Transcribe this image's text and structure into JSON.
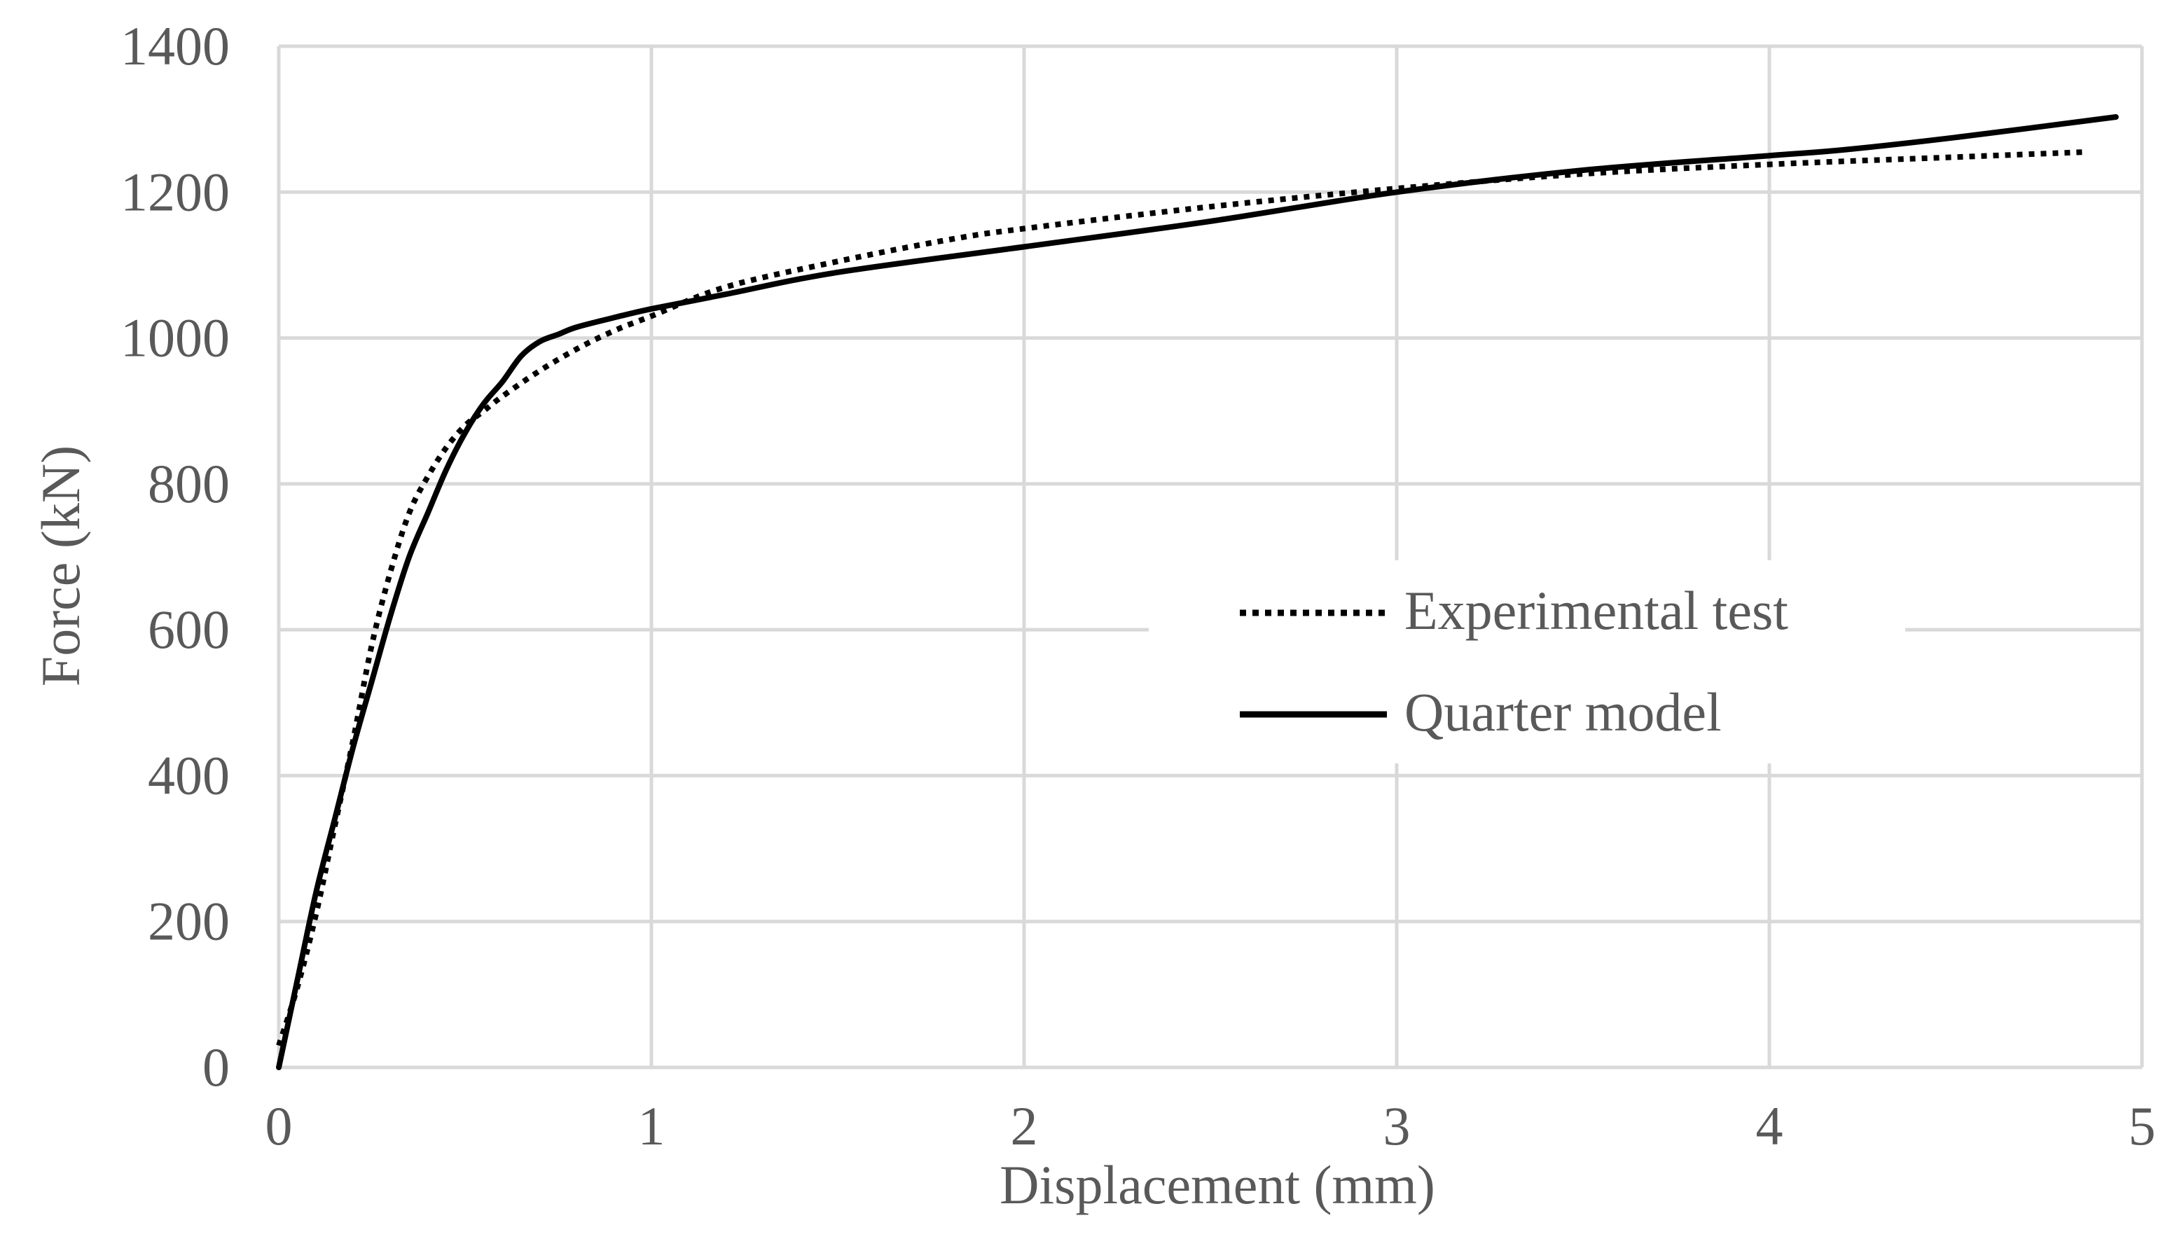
{
  "chart_data": {
    "type": "line",
    "title": "",
    "xlabel": "Displacement (mm)",
    "ylabel": "Force (kN)",
    "xlim": [
      0,
      5
    ],
    "ylim": [
      0,
      1400
    ],
    "xticks": [
      0,
      1,
      2,
      3,
      4,
      5
    ],
    "yticks": [
      0,
      200,
      400,
      600,
      800,
      1000,
      1200,
      1400
    ],
    "xtick_labels": [
      "0",
      "1",
      "2",
      "3",
      "4",
      "5"
    ],
    "ytick_labels": [
      "0",
      "200",
      "400",
      "600",
      "800",
      "1000",
      "1200",
      "1400"
    ],
    "grid": true,
    "legend_position": "center-right",
    "series": [
      {
        "name": "Experimental test",
        "style": "dotted",
        "color": "#000000",
        "x": [
          0,
          0.05,
          0.1,
          0.15,
          0.2,
          0.25,
          0.3,
          0.35,
          0.4,
          0.45,
          0.5,
          0.55,
          0.6,
          0.7,
          0.8,
          0.9,
          1.0,
          1.2,
          1.5,
          1.8,
          2.0,
          2.5,
          3.0,
          3.5,
          4.0,
          4.5,
          4.85
        ],
        "y": [
          30,
          110,
          210,
          330,
          450,
          580,
          680,
          760,
          810,
          850,
          880,
          900,
          920,
          955,
          985,
          1010,
          1030,
          1070,
          1105,
          1135,
          1150,
          1180,
          1205,
          1225,
          1238,
          1248,
          1255
        ]
      },
      {
        "name": "Quarter model",
        "style": "solid",
        "color": "#000000",
        "x": [
          0,
          0.05,
          0.1,
          0.15,
          0.2,
          0.25,
          0.3,
          0.35,
          0.4,
          0.45,
          0.5,
          0.55,
          0.6,
          0.65,
          0.7,
          0.75,
          0.8,
          0.9,
          1.0,
          1.2,
          1.5,
          2.0,
          2.5,
          3.0,
          3.5,
          4.0,
          4.2,
          4.5,
          4.93
        ],
        "y": [
          0,
          120,
          240,
          340,
          440,
          530,
          620,
          700,
          760,
          820,
          870,
          910,
          940,
          975,
          995,
          1005,
          1015,
          1028,
          1040,
          1060,
          1090,
          1125,
          1160,
          1200,
          1230,
          1250,
          1258,
          1275,
          1303
        ]
      }
    ]
  }
}
